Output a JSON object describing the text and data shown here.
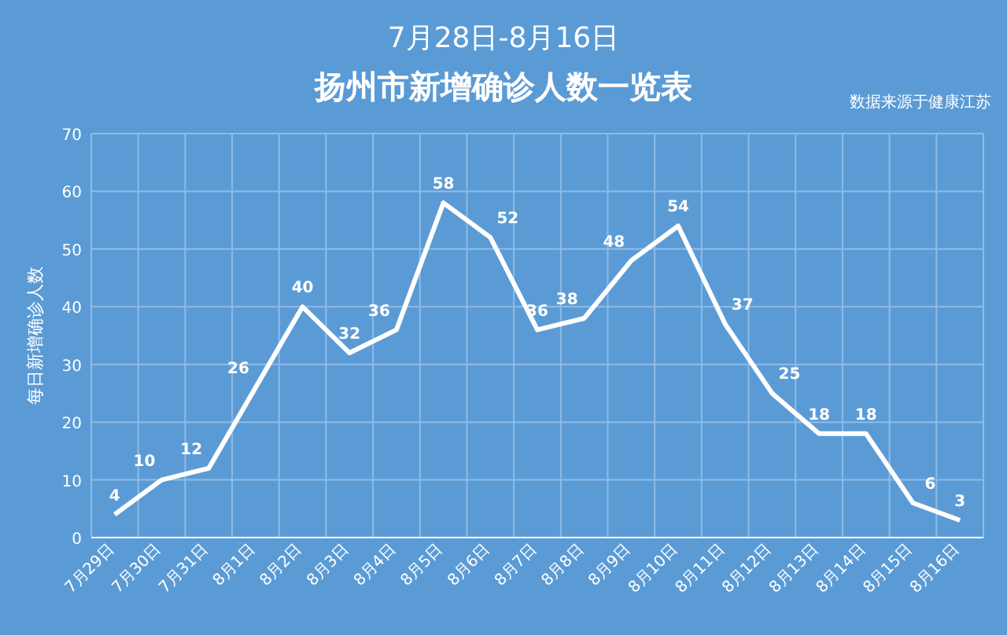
{
  "chart_data": {
    "type": "line",
    "title": "7月28日-8月16日",
    "subtitle": "扬州市新增确诊人数一览表",
    "ylabel": "每日新增确诊人数",
    "annotations": [
      "数据来源于健康江苏"
    ],
    "categories": [
      "7月29日",
      "7月30日",
      "7月31日",
      "8月1日",
      "8月2日",
      "8月3日",
      "8月4日",
      "8月5日",
      "8月6日",
      "8月7日",
      "8月8日",
      "8月9日",
      "8月10日",
      "8月11日",
      "8月12日",
      "8月13日",
      "8月14日",
      "8月15日",
      "8月16日"
    ],
    "series": [
      {
        "color": "#ffffff",
        "values": [
          4,
          10,
          12,
          26,
          40,
          32,
          36,
          58,
          52,
          36,
          38,
          48,
          54,
          37,
          25,
          18,
          18,
          6,
          3
        ]
      }
    ],
    "ylim": [
      0,
      70
    ],
    "yticks": [
      0,
      10,
      20,
      30,
      40,
      50,
      60,
      70
    ],
    "grid": true,
    "data_labels": true,
    "marker": "none",
    "line_style": "solid"
  }
}
